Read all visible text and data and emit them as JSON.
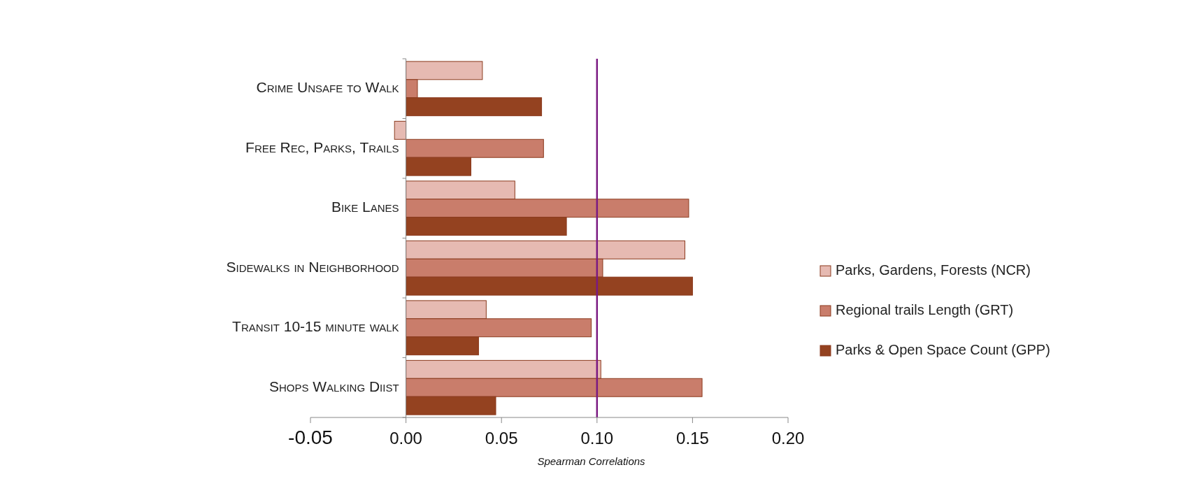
{
  "chart_data": {
    "type": "bar",
    "orientation": "horizontal",
    "xlabel": "Spearman Correlations",
    "categories": [
      "Crime Unsafe to Walk",
      "Free Rec, Parks, Trails",
      "Bike Lanes",
      "Sidewalks in Neighborhood",
      "Transit 10-15 minute walk",
      "Shops Walking Diist"
    ],
    "series": [
      {
        "name": "Parks, Gardens, Forests (NCR)",
        "color": "#e6bab2",
        "values": [
          0.04,
          -0.006,
          0.057,
          0.146,
          0.042,
          0.102
        ]
      },
      {
        "name": "Regional trails Length (GRT)",
        "color": "#c97d6b",
        "values": [
          0.006,
          0.072,
          0.148,
          0.103,
          0.097,
          0.155
        ]
      },
      {
        "name": "Parks & Open Space Count (GPP)",
        "color": "#944220",
        "values": [
          0.071,
          0.034,
          0.084,
          0.15,
          0.038,
          0.047
        ]
      }
    ],
    "xlim": [
      -0.05,
      0.2
    ],
    "xticks": [
      {
        "value": -0.05,
        "label": "-0.05"
      },
      {
        "value": 0,
        "label": "0.00"
      },
      {
        "value": 0.05,
        "label": "0.05"
      },
      {
        "value": 0.1,
        "label": "0.10"
      },
      {
        "value": 0.15,
        "label": "0.15"
      },
      {
        "value": 0.2,
        "label": "0.20"
      }
    ],
    "ref_lines": [
      {
        "axis": "x",
        "value": 0.1,
        "color": "#7b1a82"
      }
    ],
    "legend": "right",
    "grid": false
  }
}
